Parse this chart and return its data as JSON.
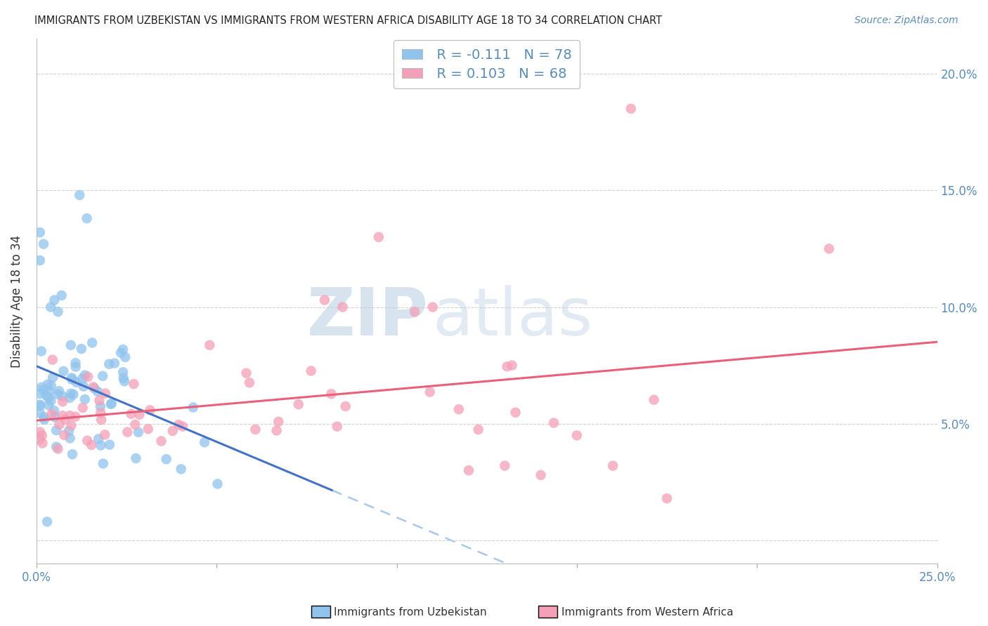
{
  "title": "IMMIGRANTS FROM UZBEKISTAN VS IMMIGRANTS FROM WESTERN AFRICA DISABILITY AGE 18 TO 34 CORRELATION CHART",
  "source": "Source: ZipAtlas.com",
  "ylabel": "Disability Age 18 to 34",
  "xlim": [
    0.0,
    0.25
  ],
  "ylim": [
    -0.01,
    0.215
  ],
  "yticks": [
    0.0,
    0.05,
    0.1,
    0.15,
    0.2
  ],
  "ytick_labels": [
    "",
    "5.0%",
    "10.0%",
    "15.0%",
    "20.0%"
  ],
  "xticks": [
    0.0,
    0.05,
    0.1,
    0.15,
    0.2,
    0.25
  ],
  "xtick_labels": [
    "0.0%",
    "",
    "",
    "",
    "",
    "25.0%"
  ],
  "color_uzbekistan": "#91C4ED",
  "color_western_africa": "#F4A0B8",
  "color_line_uzbekistan": "#4472C4",
  "color_line_western_africa": "#E8607A",
  "color_dashed": "#A8C8EA",
  "legend_r_uzbekistan": "R = -0.111",
  "legend_n_uzbekistan": "N = 78",
  "legend_r_western_africa": "R = 0.103",
  "legend_n_western_africa": "N = 68",
  "watermark_zip": "ZIP",
  "watermark_atlas": "atlas",
  "background_color": "#ffffff",
  "grid_color": "#cccccc",
  "tick_color": "#5B8DB8",
  "title_color": "#222222",
  "source_color": "#5B8DB8",
  "ylabel_color": "#333333"
}
